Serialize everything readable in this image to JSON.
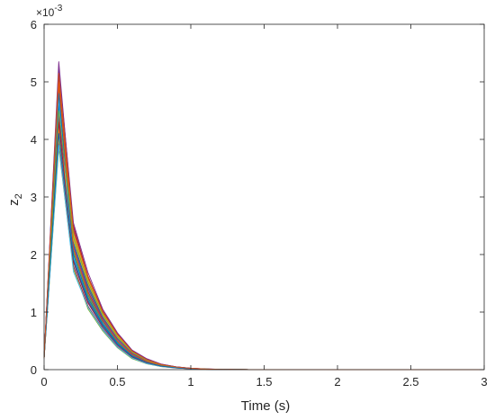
{
  "chart_data": {
    "type": "line",
    "title": "",
    "xlabel": "Time (s)",
    "ylabel_main": "z",
    "ylabel_sub": "2",
    "y_exponent_base": "×10",
    "y_exponent_power": "-3",
    "xlim": [
      0,
      3
    ],
    "ylim": [
      0,
      6
    ],
    "x_ticks": [
      0,
      0.5,
      1,
      1.5,
      2,
      2.5,
      3
    ],
    "x_tick_labels": [
      "0",
      "0.5",
      "1",
      "1.5",
      "2",
      "2.5",
      "3"
    ],
    "y_ticks": [
      0,
      1,
      2,
      3,
      4,
      5,
      6
    ],
    "y_tick_labels": [
      "0",
      "1",
      "2",
      "3",
      "4",
      "5",
      "6"
    ],
    "grid": false,
    "legend": "none",
    "x": [
      0,
      0.1,
      0.2,
      0.3,
      0.4,
      0.5,
      0.6,
      0.7,
      0.8,
      0.9,
      1.0,
      1.1,
      1.2,
      1.3,
      1.4,
      1.5,
      2.0,
      2.5,
      3.0
    ],
    "series_count_visible": "many overlapping trajectories (~30)",
    "series": [
      {
        "values": [
          0.2,
          5.35,
          2.45,
          1.6,
          1.0,
          0.6,
          0.32,
          0.18,
          0.09,
          0.05,
          0.025,
          0.012,
          0.006,
          0.003,
          0.0015,
          0.0008,
          0,
          0,
          0
        ]
      },
      {
        "values": [
          0.2,
          5.2,
          2.35,
          1.55,
          0.97,
          0.58,
          0.31,
          0.17,
          0.085,
          0.045,
          0.022,
          0.011,
          0.005,
          0.0025,
          0.0012,
          0.0006,
          0,
          0,
          0
        ]
      },
      {
        "values": [
          0.2,
          5.05,
          2.25,
          1.48,
          0.93,
          0.55,
          0.3,
          0.16,
          0.08,
          0.043,
          0.021,
          0.01,
          0.005,
          0.0024,
          0.0012,
          0.0006,
          0,
          0,
          0
        ]
      },
      {
        "values": [
          0.2,
          4.95,
          2.3,
          1.5,
          0.95,
          0.57,
          0.3,
          0.16,
          0.08,
          0.042,
          0.021,
          0.01,
          0.005,
          0.0024,
          0.0012,
          0.0006,
          0,
          0,
          0
        ]
      },
      {
        "values": [
          0.2,
          4.85,
          2.2,
          1.42,
          0.9,
          0.53,
          0.28,
          0.15,
          0.075,
          0.04,
          0.02,
          0.01,
          0.005,
          0.0023,
          0.0011,
          0.0005,
          0,
          0,
          0
        ]
      },
      {
        "values": [
          0.2,
          4.75,
          2.15,
          1.38,
          0.88,
          0.52,
          0.27,
          0.15,
          0.073,
          0.039,
          0.019,
          0.009,
          0.0045,
          0.0022,
          0.0011,
          0.0005,
          0,
          0,
          0
        ]
      },
      {
        "values": [
          0.2,
          4.65,
          2.1,
          1.35,
          0.86,
          0.5,
          0.26,
          0.14,
          0.07,
          0.037,
          0.018,
          0.009,
          0.0044,
          0.0021,
          0.001,
          0.0005,
          0,
          0,
          0
        ]
      },
      {
        "values": [
          0.2,
          4.55,
          2.05,
          1.3,
          0.83,
          0.48,
          0.25,
          0.13,
          0.068,
          0.036,
          0.018,
          0.0085,
          0.0042,
          0.002,
          0.001,
          0.0005,
          0,
          0,
          0
        ]
      },
      {
        "values": [
          0.2,
          4.45,
          2.0,
          1.25,
          0.8,
          0.46,
          0.24,
          0.13,
          0.065,
          0.034,
          0.017,
          0.0082,
          0.004,
          0.0019,
          0.0009,
          0.0004,
          0,
          0,
          0
        ]
      },
      {
        "values": [
          0.2,
          4.35,
          1.95,
          1.22,
          0.78,
          0.45,
          0.23,
          0.12,
          0.062,
          0.033,
          0.016,
          0.008,
          0.0039,
          0.0019,
          0.0009,
          0.0004,
          0,
          0,
          0
        ]
      },
      {
        "values": [
          0.2,
          4.25,
          1.9,
          1.18,
          0.75,
          0.43,
          0.22,
          0.12,
          0.06,
          0.032,
          0.016,
          0.0077,
          0.0037,
          0.0018,
          0.0009,
          0.0004,
          0,
          0,
          0
        ]
      },
      {
        "values": [
          0.2,
          4.15,
          2.05,
          1.28,
          0.8,
          0.47,
          0.25,
          0.13,
          0.066,
          0.035,
          0.017,
          0.0083,
          0.004,
          0.0019,
          0.0009,
          0.0004,
          0,
          0,
          0
        ]
      },
      {
        "values": [
          0.2,
          4.05,
          1.85,
          1.15,
          0.72,
          0.42,
          0.21,
          0.11,
          0.058,
          0.031,
          0.015,
          0.0074,
          0.0036,
          0.0017,
          0.0008,
          0.0004,
          0,
          0,
          0
        ]
      },
      {
        "values": [
          0.2,
          3.95,
          1.8,
          1.1,
          0.7,
          0.4,
          0.2,
          0.11,
          0.055,
          0.03,
          0.015,
          0.0072,
          0.0035,
          0.0017,
          0.0008,
          0.0004,
          0,
          0,
          0
        ]
      },
      {
        "values": [
          0.2,
          3.85,
          1.75,
          1.05,
          0.67,
          0.38,
          0.19,
          0.1,
          0.052,
          0.028,
          0.014,
          0.0068,
          0.0033,
          0.0016,
          0.0008,
          0.0004,
          0,
          0,
          0
        ]
      },
      {
        "values": [
          0.2,
          4.6,
          2.2,
          1.45,
          0.92,
          0.55,
          0.29,
          0.16,
          0.078,
          0.041,
          0.02,
          0.0097,
          0.0047,
          0.0023,
          0.0011,
          0.0005,
          0,
          0,
          0
        ]
      },
      {
        "values": [
          0.2,
          4.9,
          2.4,
          1.58,
          0.99,
          0.6,
          0.31,
          0.17,
          0.088,
          0.046,
          0.023,
          0.011,
          0.0053,
          0.0026,
          0.0012,
          0.0006,
          0,
          0,
          0
        ]
      },
      {
        "values": [
          0.2,
          5.1,
          2.5,
          1.62,
          1.02,
          0.62,
          0.33,
          0.18,
          0.092,
          0.048,
          0.024,
          0.0115,
          0.0056,
          0.0027,
          0.0013,
          0.0006,
          0,
          0,
          0
        ]
      },
      {
        "values": [
          0.2,
          4.4,
          2.15,
          1.4,
          0.89,
          0.53,
          0.28,
          0.15,
          0.074,
          0.039,
          0.019,
          0.0092,
          0.0045,
          0.0022,
          0.001,
          0.0005,
          0,
          0,
          0
        ]
      },
      {
        "values": [
          0.2,
          4.2,
          2.25,
          1.5,
          0.94,
          0.56,
          0.3,
          0.16,
          0.081,
          0.043,
          0.021,
          0.01,
          0.0049,
          0.0024,
          0.0011,
          0.0005,
          0,
          0,
          0
        ]
      },
      {
        "values": [
          0.2,
          4.0,
          2.35,
          1.55,
          0.98,
          0.59,
          0.31,
          0.17,
          0.086,
          0.045,
          0.022,
          0.0108,
          0.0052,
          0.0025,
          0.0012,
          0.0006,
          0,
          0,
          0
        ]
      },
      {
        "values": [
          0.2,
          4.7,
          1.95,
          1.2,
          0.76,
          0.44,
          0.23,
          0.12,
          0.061,
          0.032,
          0.016,
          0.0078,
          0.0038,
          0.0018,
          0.0009,
          0.0004,
          0,
          0,
          0
        ]
      },
      {
        "values": [
          0.2,
          4.8,
          2.0,
          1.24,
          0.79,
          0.46,
          0.24,
          0.13,
          0.064,
          0.034,
          0.017,
          0.0081,
          0.0039,
          0.0019,
          0.0009,
          0.0004,
          0,
          0,
          0
        ]
      },
      {
        "values": [
          0.2,
          5.0,
          2.1,
          1.33,
          0.85,
          0.5,
          0.26,
          0.14,
          0.069,
          0.036,
          0.018,
          0.0087,
          0.0042,
          0.002,
          0.001,
          0.0005,
          0,
          0,
          0
        ]
      },
      {
        "values": [
          0.2,
          5.25,
          2.55,
          1.68,
          1.05,
          0.64,
          0.34,
          0.19,
          0.096,
          0.05,
          0.025,
          0.012,
          0.0058,
          0.0028,
          0.0013,
          0.0006,
          0,
          0,
          0
        ]
      },
      {
        "values": [
          0.2,
          3.9,
          1.7,
          1.08,
          0.69,
          0.39,
          0.2,
          0.105,
          0.054,
          0.029,
          0.014,
          0.007,
          0.0034,
          0.0016,
          0.0008,
          0.0004,
          0,
          0,
          0
        ]
      },
      {
        "values": [
          0.2,
          4.3,
          1.88,
          1.16,
          0.74,
          0.43,
          0.22,
          0.118,
          0.059,
          0.031,
          0.015,
          0.0075,
          0.0036,
          0.0017,
          0.0008,
          0.0004,
          0,
          0,
          0
        ]
      },
      {
        "values": [
          0.2,
          4.5,
          2.3,
          1.52,
          0.96,
          0.57,
          0.3,
          0.162,
          0.082,
          0.043,
          0.021,
          0.0104,
          0.005,
          0.0024,
          0.0011,
          0.0005,
          0,
          0,
          0
        ]
      },
      {
        "values": [
          0.2,
          4.1,
          1.92,
          1.2,
          0.77,
          0.44,
          0.23,
          0.123,
          0.062,
          0.033,
          0.016,
          0.0079,
          0.0038,
          0.0018,
          0.0009,
          0.0004,
          0,
          0,
          0
        ]
      },
      {
        "values": [
          0.2,
          5.15,
          2.42,
          1.6,
          1.0,
          0.61,
          0.32,
          0.172,
          0.087,
          0.046,
          0.023,
          0.011,
          0.0054,
          0.0026,
          0.0012,
          0.0006,
          0,
          0,
          0
        ]
      }
    ],
    "series_colors": [
      "#7E2F8E",
      "#0072BD",
      "#D95319",
      "#EDB120",
      "#77AC30",
      "#4DBEEE",
      "#A2142F",
      "#0072BD",
      "#D95319",
      "#EDB120",
      "#7E2F8E",
      "#77AC30",
      "#4DBEEE",
      "#A2142F",
      "#77AC30",
      "#0072BD",
      "#D95319",
      "#A2142F",
      "#7E2F8E",
      "#EDB120",
      "#EDB120",
      "#4DBEEE",
      "#0072BD",
      "#D95319",
      "#7E2F8E",
      "#4DBEEE",
      "#A2142F",
      "#77AC30",
      "#0072BD",
      "#D95319"
    ]
  },
  "colors": {
    "axis": "#262626",
    "background": "#ffffff"
  }
}
